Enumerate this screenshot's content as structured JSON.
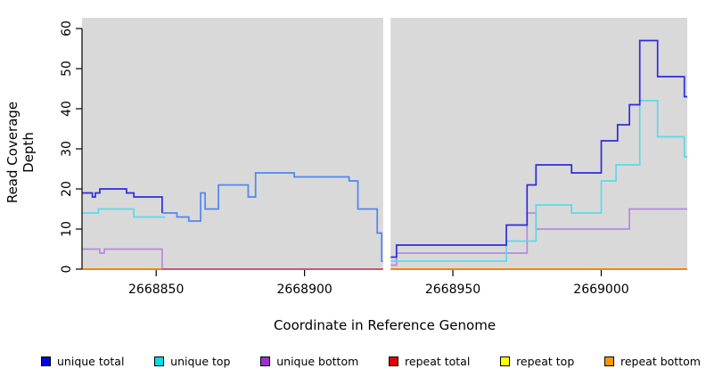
{
  "figure": {
    "background": "#ffffff",
    "panel_background": "#d9d9d9",
    "masked_gap_color": "#ffffff"
  },
  "axes": {
    "x": {
      "label": "Coordinate in Reference Genome",
      "ticks": [
        2668850,
        2668900,
        2668950,
        2669000
      ],
      "range": [
        2668825,
        2669029
      ]
    },
    "y": {
      "label": "Read Coverage Depth",
      "ticks": [
        0,
        10,
        20,
        30,
        40,
        50,
        60
      ],
      "range": [
        0,
        60
      ]
    }
  },
  "chart_data": {
    "type": "line",
    "step": true,
    "title": "",
    "xlabel": "Coordinate in Reference Genome",
    "ylabel": "Read Coverage Depth",
    "xlim": [
      2668825,
      2669029
    ],
    "ylim": [
      0,
      60
    ],
    "grid": false,
    "legend_position": "bottom",
    "masked_region": {
      "from": 2668926.5,
      "to": 2668929
    },
    "series": [
      {
        "name": "repeat top",
        "color": "#eded2a",
        "segments": [
          {
            "points": [
              [
                2668825,
                0
              ],
              [
                2668926.5,
                0
              ]
            ]
          },
          {
            "points": [
              [
                2668929,
                0
              ],
              [
                2669029,
                0
              ]
            ]
          }
        ]
      },
      {
        "name": "repeat total",
        "color": "#d92222",
        "segments": [
          {
            "points": [
              [
                2668825,
                0
              ],
              [
                2668926.5,
                0
              ]
            ]
          },
          {
            "points": [
              [
                2668929,
                0
              ],
              [
                2669029,
                0
              ]
            ]
          }
        ]
      },
      {
        "name": "repeat bottom",
        "color": "#ff8c00",
        "segments": [
          {
            "points": [
              [
                2668825,
                0
              ],
              [
                2668926.5,
                0
              ]
            ]
          },
          {
            "points": [
              [
                2668929,
                0
              ],
              [
                2669029,
                0
              ]
            ]
          }
        ]
      },
      {
        "name": "unique bottom",
        "color": "#b588e0",
        "segments": [
          {
            "points": [
              [
                2668825,
                5
              ],
              [
                2668831,
                4
              ],
              [
                2668832.5,
                5
              ],
              [
                2668852,
                5
              ],
              [
                2668852,
                0
              ]
            ]
          },
          {
            "color": "#c8507e",
            "points": [
              [
                2668852,
                0
              ],
              [
                2668926.5,
                0
              ]
            ]
          },
          {
            "points": [
              [
                2668929,
                1
              ],
              [
                2668931,
                4
              ],
              [
                2668975,
                14
              ],
              [
                2668978,
                10
              ],
              [
                2669009.5,
                15
              ],
              [
                2669029,
                15
              ]
            ]
          }
        ]
      },
      {
        "name": "unique top",
        "color": "#5bd9e8",
        "segments": [
          {
            "points": [
              [
                2668825,
                14
              ],
              [
                2668830.5,
                15
              ],
              [
                2668842.5,
                13
              ],
              [
                2668853,
                13
              ]
            ]
          },
          {
            "points": [
              [
                2668929,
                2
              ],
              [
                2668968,
                7
              ],
              [
                2668978,
                16
              ],
              [
                2668990,
                14
              ],
              [
                2669000,
                22
              ],
              [
                2669005,
                26
              ],
              [
                2669013,
                42
              ],
              [
                2669019,
                33
              ],
              [
                2669028,
                28
              ],
              [
                2669029,
                28
              ]
            ]
          }
        ]
      },
      {
        "name": "unique total",
        "color": "#2c2cd9",
        "segments": [
          {
            "points": [
              [
                2668825,
                19
              ],
              [
                2668828.5,
                18
              ],
              [
                2668829.5,
                19
              ],
              [
                2668831,
                20
              ],
              [
                2668840,
                19
              ],
              [
                2668842.5,
                18
              ],
              [
                2668852,
                14
              ]
            ]
          },
          {
            "color": "#4d87ef",
            "points": [
              [
                2668852,
                14
              ],
              [
                2668857,
                13
              ],
              [
                2668861,
                12
              ],
              [
                2668865,
                19
              ],
              [
                2668866.5,
                15
              ],
              [
                2668871,
                21
              ],
              [
                2668881,
                18
              ],
              [
                2668883.5,
                24
              ],
              [
                2668896.5,
                23
              ],
              [
                2668915,
                22
              ],
              [
                2668918,
                15
              ],
              [
                2668924.5,
                9
              ],
              [
                2668926,
                2
              ],
              [
                2668926.5,
                2
              ]
            ]
          },
          {
            "points": [
              [
                2668929,
                3
              ],
              [
                2668931,
                6
              ],
              [
                2668968,
                11
              ],
              [
                2668975,
                21
              ],
              [
                2668978,
                26
              ],
              [
                2668990,
                24
              ],
              [
                2669000,
                32
              ],
              [
                2669005.5,
                36
              ],
              [
                2669009.5,
                41
              ],
              [
                2669013,
                57
              ],
              [
                2669019,
                48
              ],
              [
                2669028,
                43
              ],
              [
                2669029,
                43
              ]
            ]
          }
        ]
      }
    ]
  },
  "legend": {
    "items": [
      {
        "label": "unique total",
        "color": "#0000e0"
      },
      {
        "label": "unique top",
        "color": "#00dbe8"
      },
      {
        "label": "unique bottom",
        "color": "#9932cc"
      },
      {
        "label": "repeat total",
        "color": "#e00000"
      },
      {
        "label": "repeat top",
        "color": "#ffff00"
      },
      {
        "label": "repeat bottom",
        "color": "#ff9500"
      }
    ]
  }
}
